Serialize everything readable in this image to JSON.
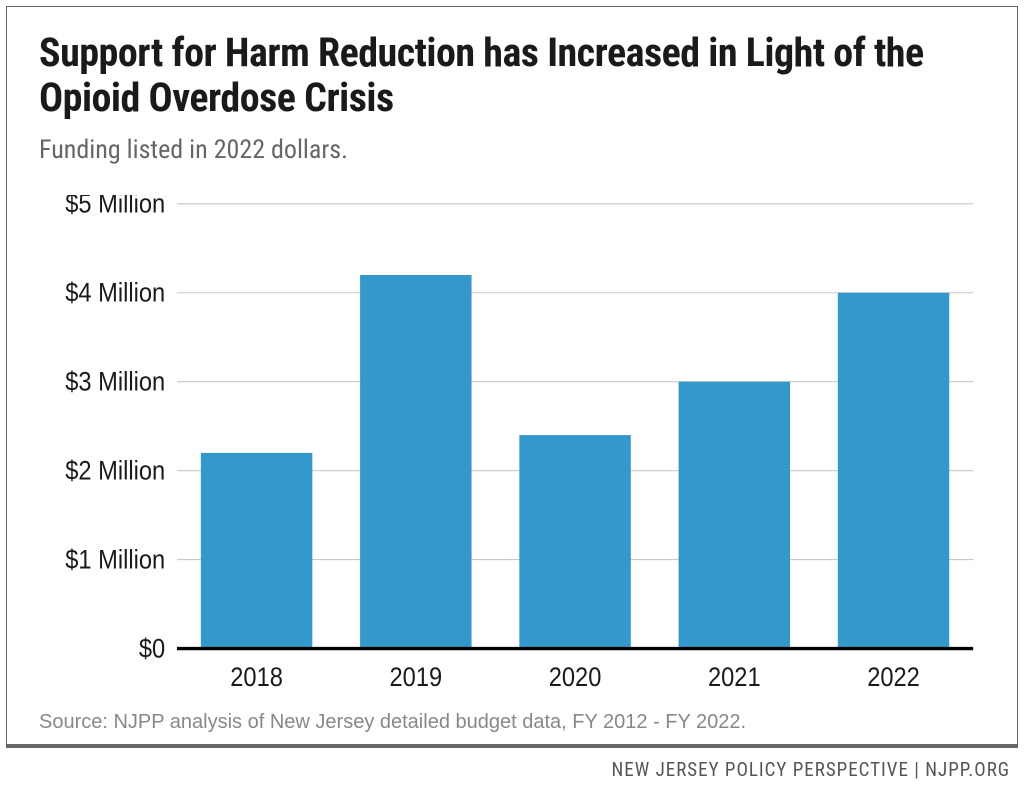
{
  "title": "Support for Harm Reduction has Increased in Light of the Opioid Overdose Crisis",
  "subtitle": "Funding listed in 2022 dollars.",
  "source": "Source: NJPP analysis of New Jersey detailed budget data, FY 2012 - FY 2022.",
  "footer": "NEW JERSEY POLICY PERSPECTIVE | NJPP.ORG",
  "chart": {
    "type": "bar",
    "categories": [
      "2018",
      "2019",
      "2020",
      "2021",
      "2022"
    ],
    "values": [
      2.2,
      4.2,
      2.4,
      3.0,
      4.0
    ],
    "bar_color": "#3399cc",
    "background_color": "#ffffff",
    "grid_color": "#c9c9c9",
    "axis_color": "#000000",
    "text_color": "#1a1a1a",
    "ylim": [
      0,
      5
    ],
    "ytick_step": 1,
    "ytick_labels": [
      "$0",
      "$1 Million",
      "$2 Million",
      "$3 Million",
      "$4 Million",
      "$5 Million"
    ],
    "bar_width_ratio": 0.7,
    "title_fontsize": 40,
    "subtitle_fontsize": 26,
    "label_fontsize": 24,
    "source_fontsize": 20
  }
}
